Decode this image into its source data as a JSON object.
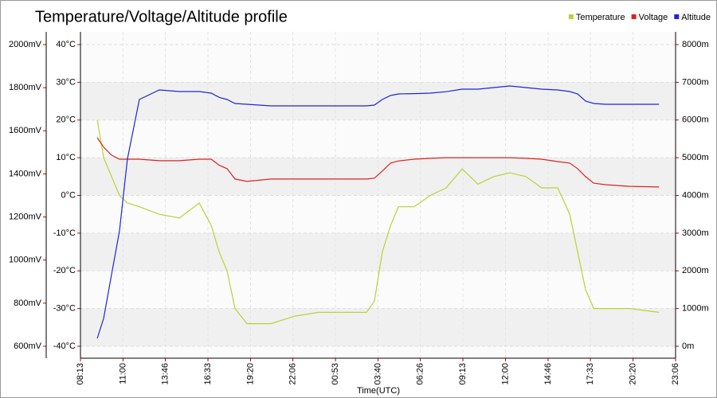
{
  "chart_data": {
    "type": "line",
    "title": "Temperature/Voltage/Altitude profile",
    "x_label": "Time(UTC)",
    "x": [
      66,
      91,
      122,
      153,
      184,
      231,
      309,
      388,
      466,
      513,
      544,
      575,
      606,
      653,
      747,
      841,
      934,
      1028,
      1122,
      1153,
      1184,
      1216,
      1247,
      1309,
      1372,
      1434,
      1497,
      1559,
      1622,
      1684,
      1747,
      1809,
      1872,
      1919,
      1950,
      1981,
      2013,
      2059,
      2153,
      2269
    ],
    "xlim": [
      0,
      2334
    ],
    "xticks": [
      {
        "value": 0,
        "label": "08:13"
      },
      {
        "value": 167,
        "label": "11:00"
      },
      {
        "value": 333,
        "label": "13:46"
      },
      {
        "value": 500,
        "label": "16:33"
      },
      {
        "value": 667,
        "label": "19:20"
      },
      {
        "value": 833,
        "label": "22:06"
      },
      {
        "value": 1000,
        "label": "00:53"
      },
      {
        "value": 1167,
        "label": "03:40"
      },
      {
        "value": 1333,
        "label": "06:26"
      },
      {
        "value": 1500,
        "label": "09:13"
      },
      {
        "value": 1667,
        "label": "12:00"
      },
      {
        "value": 1834,
        "label": "14:46"
      },
      {
        "value": 2000,
        "label": "17:33"
      },
      {
        "value": 2167,
        "label": "20:20"
      },
      {
        "value": 2334,
        "label": "23:06"
      }
    ],
    "ylim": [
      -40,
      40
    ],
    "yticks": [
      {
        "value": -40,
        "label": "-40°C"
      },
      {
        "value": -30,
        "label": "-30°C"
      },
      {
        "value": -20,
        "label": "-20°C"
      },
      {
        "value": -10,
        "label": "-10°C"
      },
      {
        "value": 0,
        "label": "0°C"
      },
      {
        "value": 10,
        "label": "10°C"
      },
      {
        "value": 20,
        "label": "20°C"
      },
      {
        "value": 30,
        "label": "30°C"
      },
      {
        "value": 40,
        "label": "40°C"
      }
    ],
    "y2lim": [
      0,
      8000
    ],
    "y2ticks": [
      {
        "value": 0,
        "label": "0m"
      },
      {
        "value": 1000,
        "label": "1000m"
      },
      {
        "value": 2000,
        "label": "2000m"
      },
      {
        "value": 3000,
        "label": "3000m"
      },
      {
        "value": 4000,
        "label": "4000m"
      },
      {
        "value": 5000,
        "label": "5000m"
      },
      {
        "value": 6000,
        "label": "6000m"
      },
      {
        "value": 7000,
        "label": "7000m"
      },
      {
        "value": 8000,
        "label": "8000m"
      }
    ],
    "y3lim": [
      600,
      2000
    ],
    "y3ticks": [
      {
        "value": 600,
        "label": "600mV"
      },
      {
        "value": 800,
        "label": "800mV"
      },
      {
        "value": 1000,
        "label": "1000mV"
      },
      {
        "value": 1200,
        "label": "1200mV"
      },
      {
        "value": 1400,
        "label": "1400mV"
      },
      {
        "value": 1600,
        "label": "1600mV"
      },
      {
        "value": 1800,
        "label": "1800mV"
      },
      {
        "value": 2000,
        "label": "2000mV"
      }
    ],
    "grid": true,
    "legend": "top-right",
    "series": [
      {
        "name": "Temperature",
        "color": "#b8d335",
        "axis": "y",
        "values": [
          20,
          10,
          5,
          0,
          -2,
          -3,
          -5,
          -6,
          -2,
          -8,
          -15,
          -20,
          -30,
          -34,
          -34,
          -32,
          -31,
          -31,
          -31,
          -28,
          -15,
          -8,
          -3,
          -3,
          0,
          2,
          7,
          3,
          5,
          6,
          5,
          2,
          2,
          -5,
          -15,
          -25,
          -30,
          -30,
          -30,
          -31
        ]
      },
      {
        "name": "Voltage",
        "color": "#dd2222",
        "axis": "y3",
        "values": [
          1568,
          1524,
          1487,
          1468,
          1468,
          1468,
          1461,
          1461,
          1468,
          1468,
          1440,
          1424,
          1376,
          1365,
          1376,
          1376,
          1376,
          1376,
          1376,
          1380,
          1413,
          1450,
          1460,
          1468,
          1472,
          1475,
          1475,
          1475,
          1475,
          1475,
          1472,
          1468,
          1457,
          1450,
          1424,
          1387,
          1357,
          1350,
          1342,
          1339
        ]
      },
      {
        "name": "Altitude",
        "color": "#2222dd",
        "axis": "y2",
        "values": [
          211,
          739,
          1900,
          3061,
          4960,
          6544,
          6797,
          6755,
          6755,
          6712,
          6600,
          6544,
          6438,
          6417,
          6375,
          6375,
          6375,
          6375,
          6375,
          6396,
          6544,
          6649,
          6691,
          6700,
          6712,
          6750,
          6818,
          6818,
          6860,
          6902,
          6860,
          6818,
          6797,
          6755,
          6691,
          6501,
          6438,
          6417,
          6417,
          6417
        ]
      }
    ]
  }
}
